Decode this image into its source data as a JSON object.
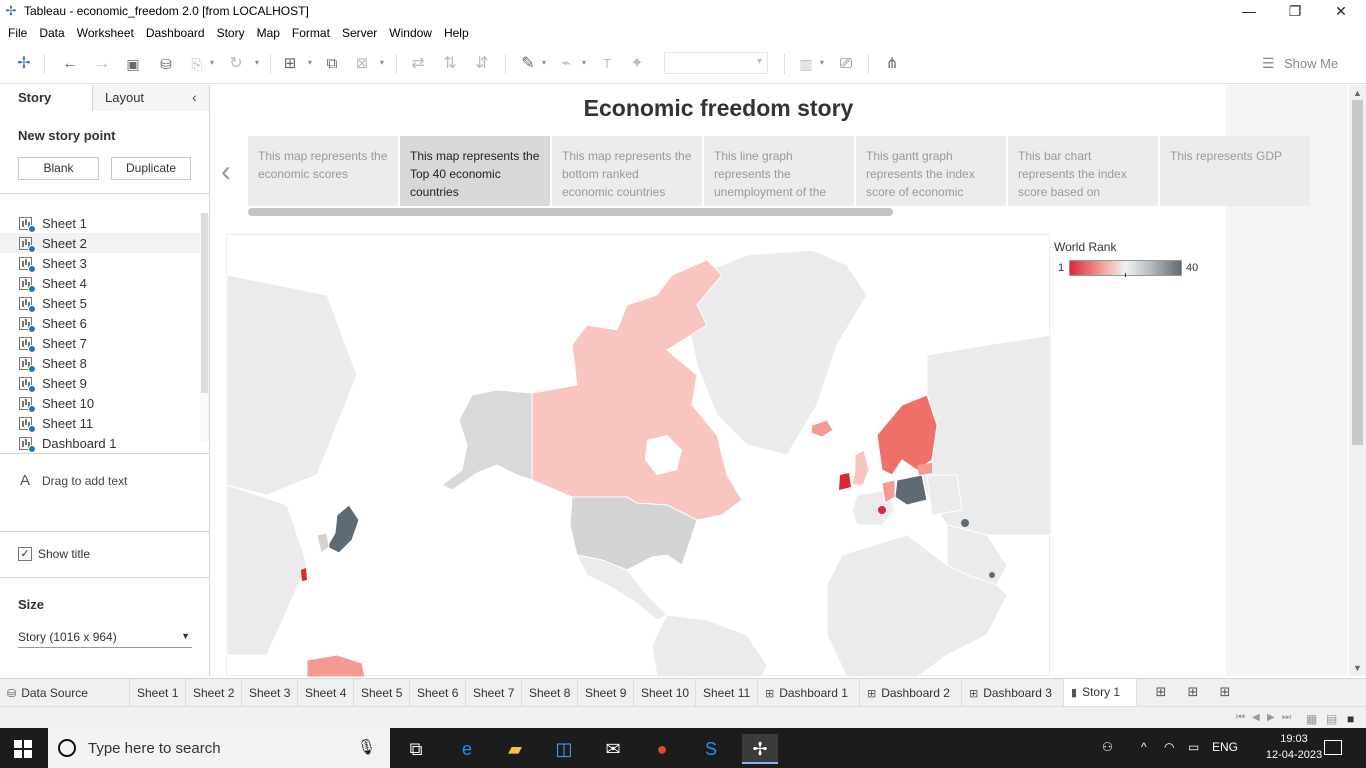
{
  "window": {
    "title": "Tableau - economic_freedom 2.0 [from LOCALHOST]",
    "controls": {
      "minimize": "—",
      "restore": "❐",
      "close": "✕"
    }
  },
  "menu": [
    "File",
    "Data",
    "Worksheet",
    "Dashboard",
    "Story",
    "Map",
    "Format",
    "Server",
    "Window",
    "Help"
  ],
  "toolbar": {
    "show_me": "Show Me"
  },
  "left_panel": {
    "tab_story": "Story",
    "tab_layout": "Layout",
    "new_story_point": "New story point",
    "blank": "Blank",
    "duplicate": "Duplicate",
    "sheets": [
      "Sheet 1",
      "Sheet 2",
      "Sheet 3",
      "Sheet 4",
      "Sheet 5",
      "Sheet 6",
      "Sheet 7",
      "Sheet 8",
      "Sheet 9",
      "Sheet 10",
      "Sheet 11",
      "Dashboard 1"
    ],
    "selected_sheet_index": 1,
    "drag_text": "Drag to add text",
    "show_title": "Show title",
    "show_title_checked": true,
    "size_label": "Size",
    "size_value": "Story (1016 x 964)"
  },
  "story": {
    "title": "Economic freedom story",
    "points": [
      {
        "text": "This map represents the economic scores",
        "active": false
      },
      {
        "text": "This map represents the Top 40 economic countries",
        "active": true
      },
      {
        "text": "This map represents the bottom ranked economic countries",
        "active": false
      },
      {
        "text": "This line graph represents the unemployment of the",
        "active": false
      },
      {
        "text": "This gantt graph represents the index score of economic",
        "active": false
      },
      {
        "text": "This bar chart represents the index score based on",
        "active": false
      },
      {
        "text": "This represents GDP",
        "active": false
      }
    ]
  },
  "legend": {
    "title": "World Rank",
    "min": "1",
    "max": "40"
  },
  "colors": {
    "rank_high": "#d62b33",
    "rank_mid": "#f2f2f2",
    "rank_low": "#5f6b74"
  },
  "bottom_tabs": [
    {
      "label": "Data Source",
      "icon": "database-icon"
    },
    {
      "label": "Sheet 1"
    },
    {
      "label": "Sheet 2"
    },
    {
      "label": "Sheet 3"
    },
    {
      "label": "Sheet 4"
    },
    {
      "label": "Sheet 5"
    },
    {
      "label": "Sheet 6"
    },
    {
      "label": "Sheet 7"
    },
    {
      "label": "Sheet 8"
    },
    {
      "label": "Sheet 9"
    },
    {
      "label": "Sheet 10"
    },
    {
      "label": "Sheet 11"
    },
    {
      "label": "Dashboard 1",
      "icon": "dashboard-icon"
    },
    {
      "label": "Dashboard 2",
      "icon": "dashboard-icon"
    },
    {
      "label": "Dashboard 3",
      "icon": "dashboard-icon"
    },
    {
      "label": "Story 1",
      "icon": "story-icon",
      "active": true
    }
  ],
  "taskbar": {
    "search_placeholder": "Type here to search",
    "language": "ENG",
    "time": "19:03",
    "date": "12-04-2023"
  }
}
